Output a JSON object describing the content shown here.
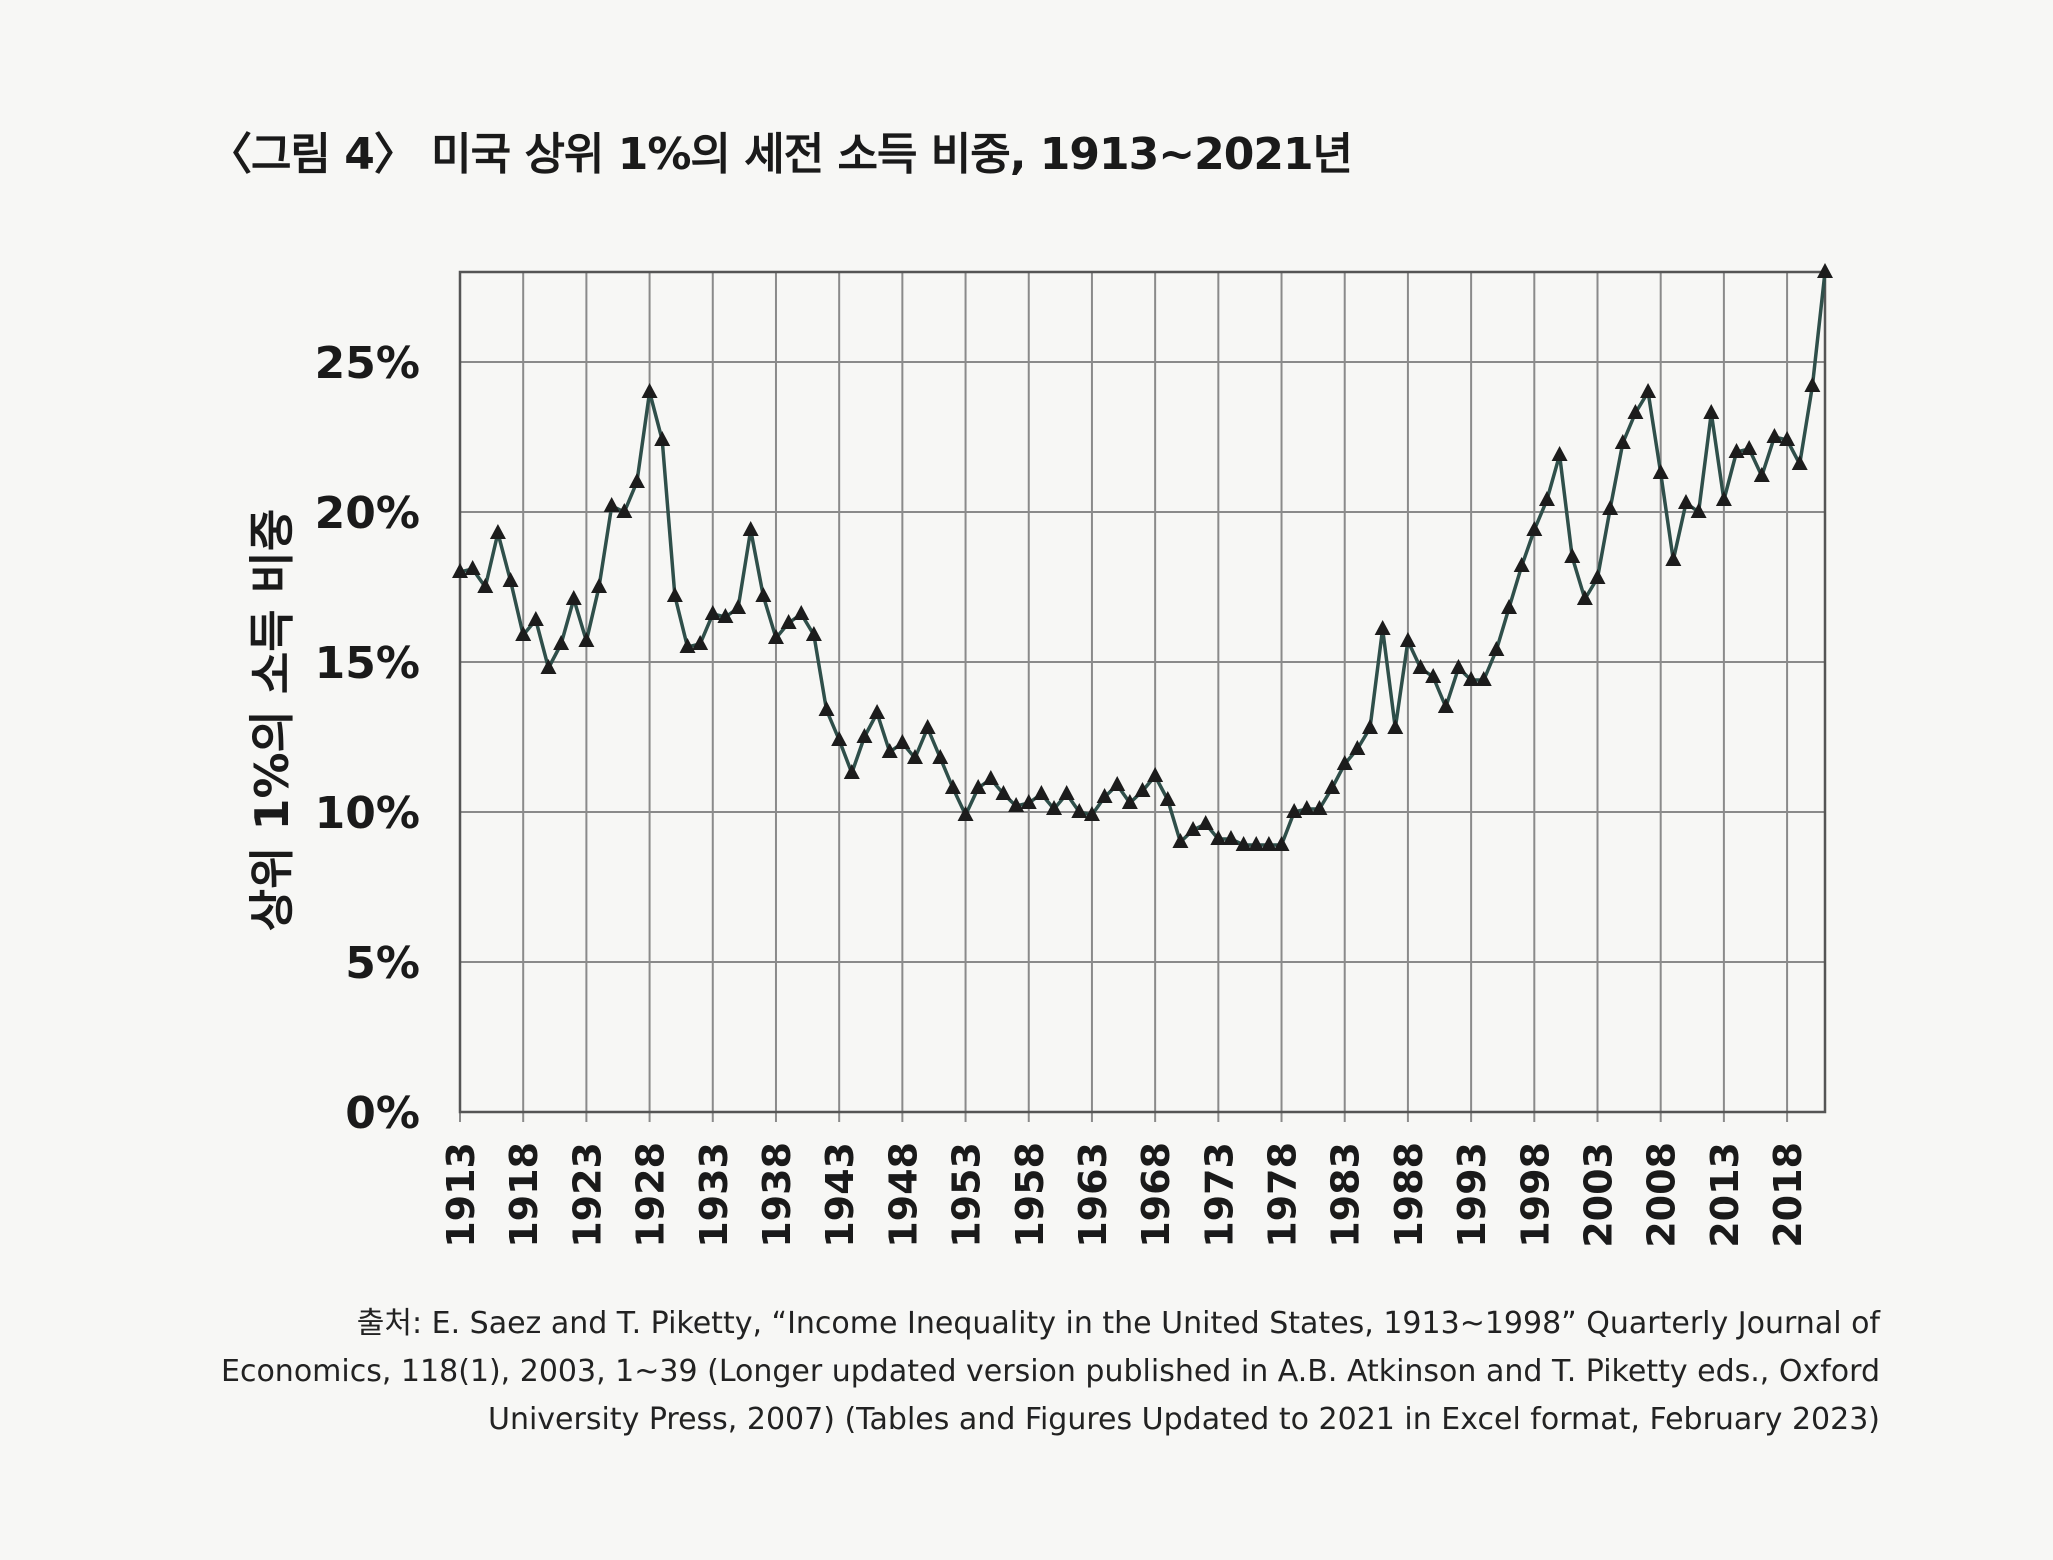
{
  "source": {
    "prefix": "출처:",
    "text": "E. Saez and T. Piketty, “Income Inequality in the United States, 1913~1998” Quarterly Journal of Economics, 118(1), 2003, 1~39 (Longer updated version published in A.B. Atkinson and T. Piketty eds., Oxford University Press, 2007) (Tables and Figures Updated to 2021 in Excel format, February 2023)"
  },
  "chart_data": {
    "type": "line",
    "title": "〈그림 4〉 미국 상위 1%의 세전 소득 비중, 1913~2021년",
    "xlabel": "",
    "ylabel": "상위 1%의 소득 비중",
    "ylim": [
      0,
      28
    ],
    "yticks": [
      0,
      5,
      10,
      15,
      20,
      25
    ],
    "ytick_labels": [
      "0%",
      "5%",
      "10%",
      "15%",
      "20%",
      "25%"
    ],
    "xlim": [
      1913,
      2021
    ],
    "xticks": [
      1913,
      1918,
      1923,
      1928,
      1933,
      1938,
      1943,
      1948,
      1953,
      1958,
      1963,
      1968,
      1973,
      1978,
      1983,
      1988,
      1993,
      1998,
      2003,
      2008,
      2013,
      2018
    ],
    "grid": true,
    "marker": "triangle",
    "line_color": "#2f4f4a",
    "series": [
      {
        "name": "상위 1% 소득 비중",
        "x": [
          1913,
          1914,
          1915,
          1916,
          1917,
          1918,
          1919,
          1920,
          1921,
          1922,
          1923,
          1924,
          1925,
          1926,
          1927,
          1928,
          1929,
          1930,
          1931,
          1932,
          1933,
          1934,
          1935,
          1936,
          1937,
          1938,
          1939,
          1940,
          1941,
          1942,
          1943,
          1944,
          1945,
          1946,
          1947,
          1948,
          1949,
          1950,
          1951,
          1952,
          1953,
          1954,
          1955,
          1956,
          1957,
          1958,
          1959,
          1960,
          1961,
          1962,
          1963,
          1964,
          1965,
          1966,
          1967,
          1968,
          1969,
          1970,
          1971,
          1972,
          1973,
          1974,
          1975,
          1976,
          1977,
          1978,
          1979,
          1980,
          1981,
          1982,
          1983,
          1984,
          1985,
          1986,
          1987,
          1988,
          1989,
          1990,
          1991,
          1992,
          1993,
          1994,
          1995,
          1996,
          1997,
          1998,
          1999,
          2000,
          2001,
          2002,
          2003,
          2004,
          2005,
          2006,
          2007,
          2008,
          2009,
          2010,
          2011,
          2012,
          2013,
          2014,
          2015,
          2016,
          2017,
          2018,
          2019,
          2020,
          2021
        ],
        "values": [
          18.0,
          18.1,
          17.5,
          19.3,
          17.7,
          15.9,
          16.4,
          14.8,
          15.6,
          17.1,
          15.7,
          17.5,
          20.2,
          20.0,
          21.0,
          24.0,
          22.4,
          17.2,
          15.5,
          15.6,
          16.6,
          16.5,
          16.8,
          19.4,
          17.2,
          15.8,
          16.3,
          16.6,
          15.9,
          13.4,
          12.4,
          11.3,
          12.5,
          13.3,
          12.0,
          12.3,
          11.8,
          12.8,
          11.8,
          10.8,
          9.9,
          10.8,
          11.1,
          10.6,
          10.2,
          10.3,
          10.6,
          10.1,
          10.6,
          10.0,
          9.9,
          10.5,
          10.9,
          10.3,
          10.7,
          11.2,
          10.4,
          9.0,
          9.4,
          9.6,
          9.1,
          9.1,
          8.9,
          8.9,
          8.9,
          8.9,
          10.0,
          10.1,
          10.1,
          10.8,
          11.6,
          12.1,
          12.8,
          16.1,
          12.8,
          15.7,
          14.8,
          14.5,
          13.5,
          14.8,
          14.4,
          14.4,
          15.4,
          16.8,
          18.2,
          19.4,
          20.4,
          21.9,
          18.5,
          17.1,
          17.8,
          20.1,
          22.3,
          23.3,
          24.0,
          21.3,
          18.4,
          20.3,
          20.0,
          23.3,
          20.4,
          22.0,
          22.1,
          21.2,
          22.5,
          22.4,
          21.6,
          24.2,
          28.0
        ]
      }
    ]
  }
}
